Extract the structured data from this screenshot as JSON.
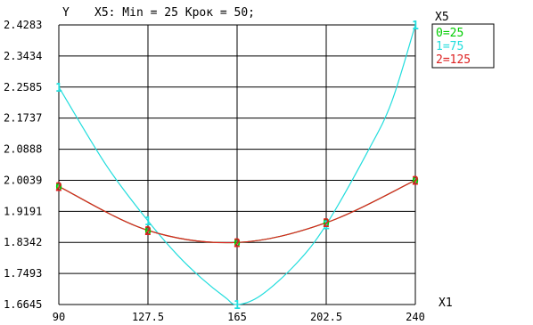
{
  "chart_data": {
    "type": "line",
    "title": "X5: Min = 25 Крок = 50;",
    "xlabel": "X1",
    "ylabel": "Y",
    "xlim": [
      90,
      240
    ],
    "ylim": [
      1.6645,
      2.4283
    ],
    "x_ticks": [
      "90",
      "127.5",
      "165",
      "202.5",
      "240"
    ],
    "y_ticks": [
      "2.4283",
      "2.3434",
      "2.2585",
      "2.1737",
      "2.0888",
      "2.0039",
      "1.9191",
      "1.8342",
      "1.7493",
      "1.6645"
    ],
    "grid": true,
    "legend_title": "X5",
    "legend_position": "right",
    "series": [
      {
        "name": "0=25",
        "marker": "0",
        "color": "#00cc00",
        "x": [
          90,
          127.5,
          165,
          202.5,
          240
        ],
        "y": [
          1.987,
          1.867,
          1.834,
          1.888,
          2.0039
        ]
      },
      {
        "name": "1=75",
        "marker": "1",
        "color": "#22dddd",
        "x": [
          90,
          110,
          127.5,
          140,
          150,
          160,
          165,
          175,
          190,
          202.5,
          220,
          230,
          240
        ],
        "y": [
          2.2585,
          2.0445,
          1.893,
          1.799,
          1.7365,
          1.684,
          1.6645,
          1.6895,
          1.777,
          1.8825,
          2.083,
          2.2175,
          2.4283
        ]
      },
      {
        "name": "2=125",
        "marker": "2",
        "color": "#dd2222",
        "x": [
          90,
          127.5,
          165,
          202.5,
          240
        ],
        "y": [
          1.987,
          1.867,
          1.834,
          1.888,
          2.0039
        ]
      }
    ]
  }
}
